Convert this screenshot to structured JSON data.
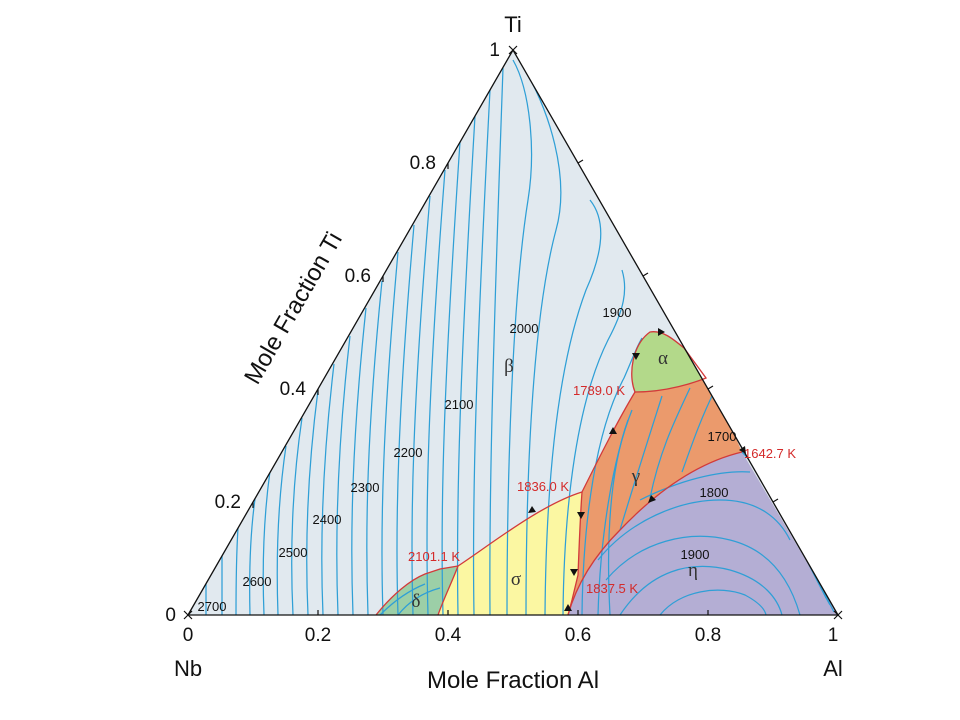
{
  "diagram": {
    "vertex_labels": {
      "top": "Ti",
      "left": "Nb",
      "right": "Al"
    },
    "axis_titles": {
      "left": "Mole Fraction Ti",
      "bottom": "Mole Fraction Al"
    },
    "left_axis_ticks": [
      "0",
      "0.2",
      "0.4",
      "0.6",
      "0.8",
      "1"
    ],
    "bottom_axis_ticks": [
      "0",
      "0.2",
      "0.4",
      "0.6",
      "0.8",
      "1"
    ],
    "phases": [
      {
        "id": "beta",
        "symbol": "β",
        "color": "#e1e9ef"
      },
      {
        "id": "alpha",
        "symbol": "α",
        "color": "#b3d98a"
      },
      {
        "id": "gamma",
        "symbol": "γ",
        "color": "#eb9a6c"
      },
      {
        "id": "eta",
        "symbol": "η",
        "color": "#b4aed4"
      },
      {
        "id": "sigma",
        "symbol": "σ",
        "color": "#fbf7a2"
      },
      {
        "id": "delta",
        "symbol": "δ",
        "color": "#9ccfa7"
      }
    ],
    "invariant_points": [
      "1789.0 K",
      "1836.0 K",
      "2101.1 K",
      "1837.5 K",
      "1642.7 K"
    ],
    "isotherm_labels": [
      "2700",
      "2600",
      "2500",
      "2400",
      "2300",
      "2200",
      "2100",
      "2000",
      "1900",
      "1700",
      "1800",
      "1900"
    ],
    "colors": {
      "isotherm": "#2f9fd6",
      "boundary": "#d23a3a",
      "invariant_text": "#d42a2a"
    }
  }
}
